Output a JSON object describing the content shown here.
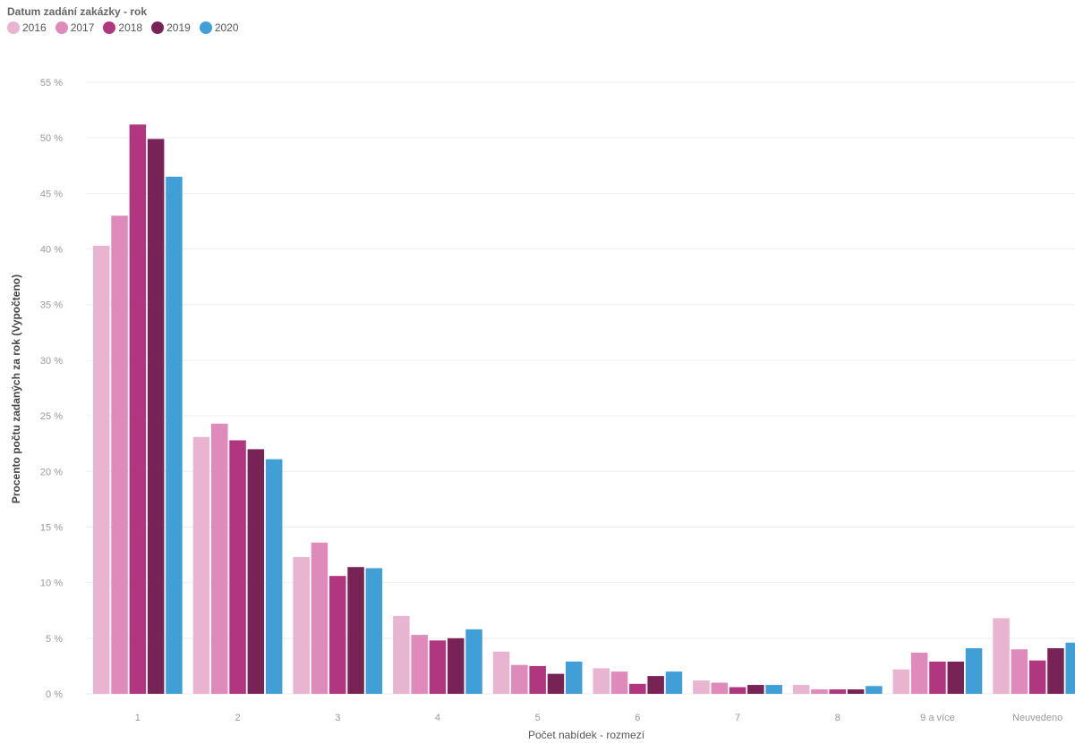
{
  "chart_data": {
    "type": "bar",
    "legend_title": "Datum zadání zakázky - rok",
    "xlabel": "Počet nabídek - rozmezí",
    "ylabel": "Procento počtu zadaných za rok (Vypočteno)",
    "ylim": [
      0,
      55
    ],
    "yticks": [
      0,
      5,
      10,
      15,
      20,
      25,
      30,
      35,
      40,
      45,
      50,
      55
    ],
    "ytick_labels": [
      "0 %",
      "5 %",
      "10 %",
      "15 %",
      "20 %",
      "25 %",
      "30 %",
      "35 %",
      "40 %",
      "45 %",
      "50 %",
      "55 %"
    ],
    "grid": true,
    "legend_position": "top-left",
    "categories": [
      "1",
      "2",
      "3",
      "4",
      "5",
      "6",
      "7",
      "8",
      "9 a více",
      "Neuvedeno"
    ],
    "series": [
      {
        "name": "2016",
        "color": "#e8b4cf",
        "values": [
          40.3,
          23.1,
          12.3,
          7.0,
          3.8,
          2.3,
          1.2,
          0.8,
          2.2,
          6.8
        ]
      },
      {
        "name": "2017",
        "color": "#de8bbb",
        "values": [
          43.0,
          24.3,
          13.6,
          5.3,
          2.6,
          2.0,
          1.0,
          0.4,
          3.7,
          4.0
        ]
      },
      {
        "name": "2018",
        "color": "#b0377f",
        "values": [
          51.2,
          22.8,
          10.6,
          4.8,
          2.5,
          0.9,
          0.6,
          0.4,
          2.9,
          3.0
        ]
      },
      {
        "name": "2019",
        "color": "#782356",
        "values": [
          49.9,
          22.0,
          11.4,
          5.0,
          1.8,
          1.6,
          0.8,
          0.4,
          2.9,
          4.1
        ]
      },
      {
        "name": "2020",
        "color": "#3f9fd6",
        "values": [
          46.5,
          21.1,
          11.3,
          5.8,
          2.9,
          2.0,
          0.8,
          0.7,
          4.1,
          4.6
        ]
      }
    ]
  }
}
